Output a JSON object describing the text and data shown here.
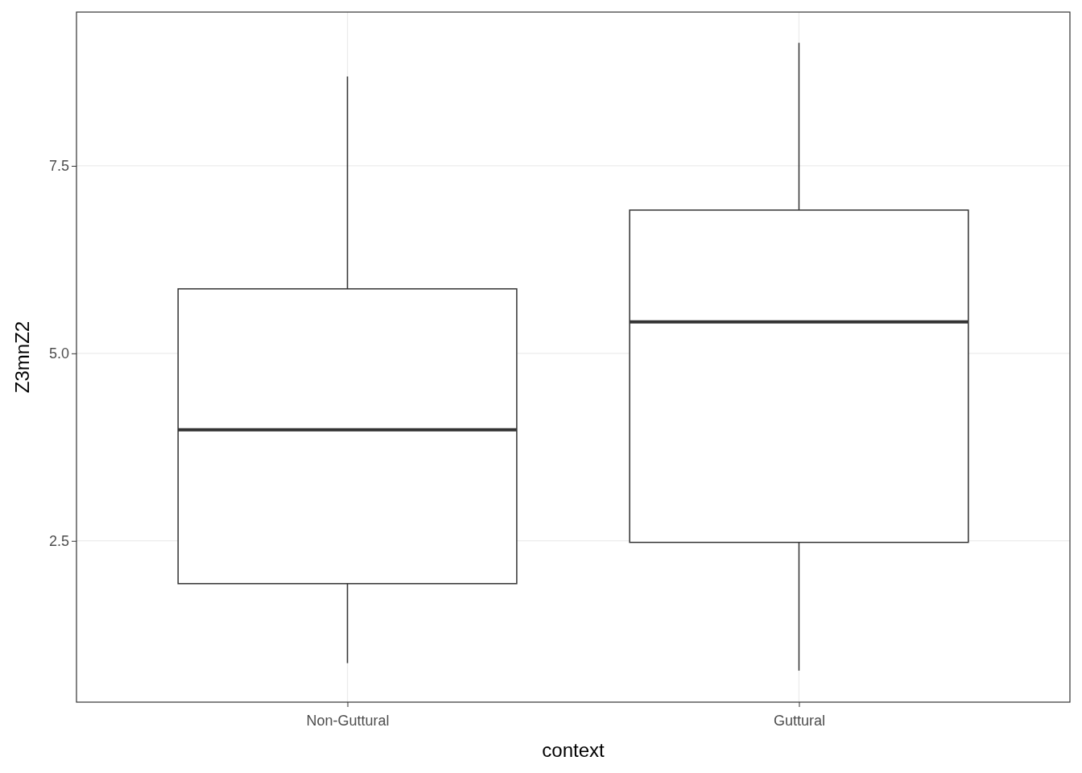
{
  "chart_data": {
    "type": "box",
    "xlabel": "context",
    "ylabel": "Z3mnZ2",
    "categories": [
      "Non-Guttural",
      "Guttural"
    ],
    "boxes": [
      {
        "low": 0.87,
        "q1": 1.93,
        "median": 3.98,
        "q3": 5.86,
        "high": 8.69
      },
      {
        "low": 0.77,
        "q1": 2.48,
        "median": 5.42,
        "q3": 6.91,
        "high": 9.14
      }
    ],
    "color": "#333333",
    "ylim": [
      0.35,
      9.55
    ],
    "yticks": [
      2.5,
      {
        "value": 5,
        "label": "5.0"
      },
      7.5
    ],
    "grid": true
  }
}
